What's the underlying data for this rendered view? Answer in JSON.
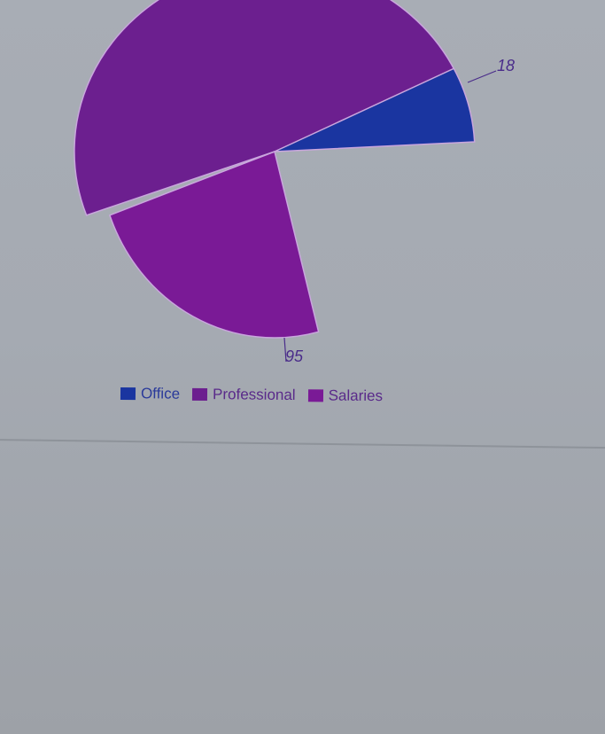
{
  "chart_data": {
    "type": "pie",
    "categories": [
      "Office",
      "Professional",
      "Salaries"
    ],
    "series": [
      {
        "values": [
          18,
          null,
          95
        ]
      }
    ],
    "data_labels": [
      {
        "category": "Office",
        "text": "18"
      },
      {
        "category": "Salaries",
        "text": "95"
      }
    ],
    "legend": {
      "position": "bottom",
      "entries": [
        "Office",
        "Professional",
        "Salaries"
      ]
    },
    "colors": {
      "Office": "#1a35a0",
      "Professional": "#6c1f8f",
      "Salaries": "#7a1a96",
      "label_text": "#4a2c8a",
      "divider": "#8e939a"
    }
  }
}
